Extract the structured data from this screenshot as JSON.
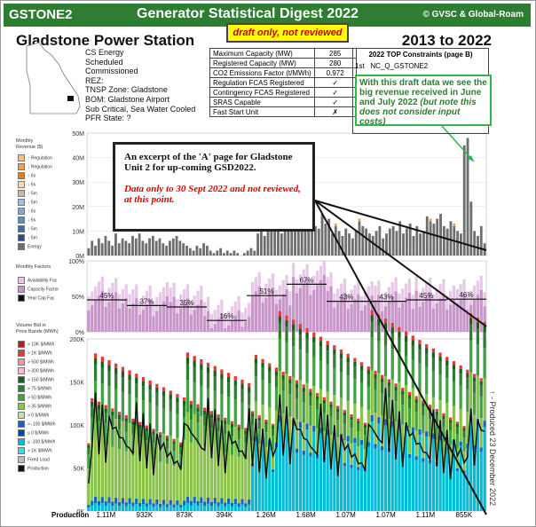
{
  "banner": {
    "code": "GSTONE2",
    "title": "Generator Statistical Digest 2022",
    "copyright": "© GVSC & Global-Roam"
  },
  "header": {
    "station": "Gladstone Power Station",
    "years": "2013 to 2022",
    "draft_label": "draft only, not reviewed"
  },
  "info": [
    "CS Energy",
    "Scheduled",
    "Commissioned",
    "REZ:",
    "TNSP Zone: Gladstone",
    "BOM: Gladstone Airport",
    "Sub Critical, Sea Water Cooled",
    "PFR State: ?"
  ],
  "specs": [
    {
      "label": "Maximum Capacity (MW)",
      "value": "285"
    },
    {
      "label": "Registered Capacity (MW)",
      "value": "280"
    },
    {
      "label": "CO2 Emissions Factor (t/MWh)",
      "value": "0.972"
    },
    {
      "label": "Regulation FCAS Registered",
      "value": "✓"
    },
    {
      "label": "Contingency FCAS Registered",
      "value": "✓"
    },
    {
      "label": "SRAS Capable",
      "value": "✓"
    },
    {
      "label": "Fast Start Unit",
      "value": "✗"
    }
  ],
  "constraints": {
    "title": "2022 TOP Constraints (page B)",
    "rank": "1st",
    "name": "NC_Q_GSTONE2"
  },
  "note": {
    "text": "With this draft data we see the big revenue received in June and July 2022 ",
    "italic": "(but note this does not consider input costs)"
  },
  "excerpt": {
    "main": "An excerpt of the 'A' page for Gladstone Unit 2 for up-coming GSD2022.",
    "caveat": "Data only to 30 Sept 2022 and not reviewed, at this point."
  },
  "side_labels": {
    "revenue": [
      "Monthly",
      "Revenue ($)"
    ],
    "factors": [
      "Monthly Factors"
    ],
    "bids": [
      "Volume Bid in",
      "Price Bands (MWh)"
    ]
  },
  "revenue_legend": [
    "↑ Regulation",
    "↓ Regulation",
    "↑ 6s",
    "↓ 6s",
    "↑ 5m",
    "↓ 5m",
    "↑ 6s",
    "↓ 6s",
    "↑ 5m",
    "↓ 5m",
    "Energy"
  ],
  "factors_legend": [
    "Availability Fac",
    "Capacity Factor",
    "Year Cap Fac"
  ],
  "bids_legend": [
    "> 10K $/MWh",
    "> 1K $/MWh",
    "> 500 $/MWh",
    "> 300 $/MWh",
    "> 150 $/MWh",
    "> 75 $/MWh",
    "> 50 $/MWh",
    "> 35 $/MWh",
    "> 0 $/MWh",
    "> -100 $/MWh",
    "≤ 0 $/MWh",
    "≤ -100 $/MWh",
    "> 1K $/MWh",
    "Fixed Load",
    "Production"
  ],
  "colors": {
    "banner": "#2e7d32",
    "energy": "#6e6e6e",
    "reg_raise": "#f0a050",
    "cap_factor": "#c896c8",
    "avail": "#e8c8e8",
    "draft_bg": "#ffff00",
    "note_border": "#2fb84a"
  },
  "vertical_note": "↑ - Produced 23 December 2022",
  "production_label": "Production",
  "chart_data": [
    {
      "type": "bar",
      "name": "Monthly Revenue",
      "ylabel": "",
      "ylim": [
        0,
        50000000
      ],
      "yticks": [
        "0M",
        "10M",
        "20M",
        "30M",
        "40M",
        "50M"
      ],
      "series": [
        {
          "name": "Energy",
          "values": [
            3,
            6,
            4,
            7,
            5,
            8,
            6,
            4,
            9,
            5,
            7,
            6,
            5,
            8,
            7,
            9,
            6,
            5,
            7,
            8,
            6,
            7,
            5,
            4,
            6,
            7,
            8,
            6,
            5,
            4,
            3,
            2,
            4,
            3,
            5,
            4,
            2,
            1,
            2,
            3,
            1,
            2,
            1,
            2,
            1,
            0,
            1,
            2,
            3,
            2,
            9,
            12,
            8,
            14,
            10,
            11,
            13,
            9,
            12,
            10,
            11,
            13,
            12,
            15,
            10,
            14,
            16,
            12,
            11,
            17,
            13,
            15,
            9,
            12,
            10,
            8,
            11,
            9,
            7,
            10,
            14,
            12,
            11,
            9,
            8,
            10,
            12,
            7,
            9,
            11,
            12,
            10,
            14,
            9,
            11,
            13,
            8,
            12,
            9,
            10,
            16,
            14,
            13,
            15,
            17,
            12,
            11,
            14,
            12,
            10,
            9,
            45,
            48,
            22,
            10,
            8,
            12,
            5
          ]
        }
      ]
    },
    {
      "type": "bar",
      "name": "Monthly Factors",
      "ylim": [
        0,
        100
      ],
      "yticks": [
        "0%",
        "50%",
        "100%"
      ],
      "annual_capacity_factor": [
        {
          "label": "45%",
          "value": 45
        },
        {
          "label": "37%",
          "value": 37
        },
        {
          "label": "35%",
          "value": 35
        },
        {
          "label": "16%",
          "value": 16
        },
        {
          "label": "51%",
          "value": 51
        },
        {
          "label": "67%",
          "value": 67
        },
        {
          "label": "43%",
          "value": 43
        },
        {
          "label": "43%",
          "value": 43
        },
        {
          "label": "45%",
          "value": 45
        },
        {
          "label": "46%",
          "value": 46
        }
      ]
    },
    {
      "type": "bar",
      "name": "Volume Bid in Price Bands",
      "ylim": [
        0,
        200000
      ],
      "yticks": [
        "0K",
        "50K",
        "100K",
        "150K",
        "200K"
      ],
      "production": [
        {
          "label": "1.11M"
        },
        {
          "label": "932K"
        },
        {
          "label": "873K"
        },
        {
          "label": "394K"
        },
        {
          "label": "1.26M"
        },
        {
          "label": "1.68M"
        },
        {
          "label": "1.07M"
        },
        {
          "label": "1.07M"
        },
        {
          "label": "1.11M"
        },
        {
          "label": "855K"
        }
      ]
    }
  ]
}
